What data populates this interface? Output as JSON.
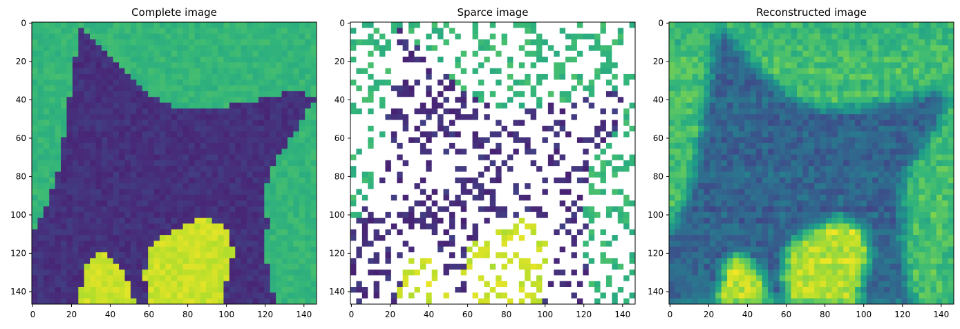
{
  "chart_data": [
    {
      "type": "heatmap",
      "title": "Complete image",
      "colormap": "viridis",
      "image_shape": [
        147,
        147
      ],
      "xlim": [
        0,
        146
      ],
      "ylim": [
        146,
        0
      ],
      "x_ticks": [
        0,
        20,
        40,
        60,
        80,
        100,
        120,
        140
      ],
      "y_ticks": [
        0,
        20,
        40,
        60,
        80,
        100,
        120,
        140
      ]
    },
    {
      "type": "heatmap",
      "title": "Sparce image",
      "colormap": "viridis",
      "missing_color": "#ffffff",
      "image_shape": [
        147,
        147
      ],
      "xlim": [
        0,
        146
      ],
      "ylim": [
        146,
        0
      ],
      "x_ticks": [
        0,
        20,
        40,
        60,
        80,
        100,
        120,
        140
      ],
      "y_ticks": [
        0,
        20,
        40,
        60,
        80,
        100,
        120,
        140
      ]
    },
    {
      "type": "heatmap",
      "title": "Reconstructed image",
      "colormap": "viridis",
      "image_shape": [
        147,
        147
      ],
      "xlim": [
        0,
        146
      ],
      "ylim": [
        146,
        0
      ],
      "x_ticks": [
        0,
        20,
        40,
        60,
        80,
        100,
        120,
        140
      ],
      "y_ticks": [
        0,
        20,
        40,
        60,
        80,
        100,
        120,
        140
      ]
    }
  ],
  "colors": {
    "viridis_dark": "#3b1c6f",
    "viridis_mid": "#21908d",
    "viridis_green": "#6ece58",
    "viridis_yellow": "#fde725"
  }
}
